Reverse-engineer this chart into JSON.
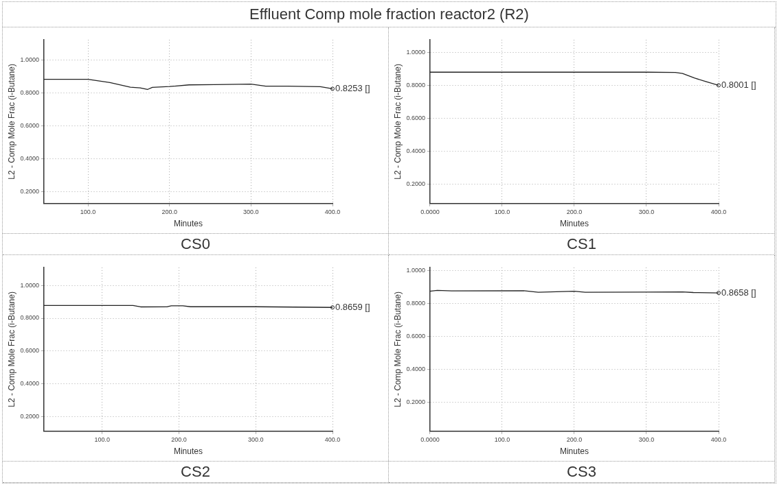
{
  "chart_data": [
    {
      "type": "line",
      "title": "Effluent Comp mole fraction reactor2 (R2)",
      "subtitle": "CS0",
      "xlabel": "Minutes",
      "ylabel": "L2 - Comp Mole Frac (i-Butane)",
      "x": [
        46,
        100,
        127,
        152,
        164,
        173,
        179,
        200,
        224,
        255,
        300,
        318,
        345,
        385,
        400
      ],
      "series": [
        {
          "color": "#222222",
          "values": [
            0.883,
            0.883,
            0.863,
            0.835,
            0.831,
            0.821,
            0.834,
            0.839,
            0.849,
            0.851,
            0.854,
            0.841,
            0.841,
            0.838,
            0.8253
          ],
          "value_labels": [
            null,
            null,
            null,
            null,
            null,
            null,
            null,
            null,
            null,
            null,
            null,
            null,
            null,
            null,
            "0.8253 []"
          ]
        }
      ],
      "xlim": [
        46,
        400
      ],
      "ylim": [
        0.128,
        1.123
      ],
      "xticks": [
        {
          "value": 100,
          "label": "100.0"
        },
        {
          "value": 200,
          "label": "200.0"
        },
        {
          "value": 300,
          "label": "300.0"
        },
        {
          "value": 400,
          "label": "400.0"
        }
      ],
      "yticks": [
        {
          "value": 0.2,
          "label": "0.2000"
        },
        {
          "value": 0.4,
          "label": "0.4000"
        },
        {
          "value": 0.6,
          "label": "0.6000"
        },
        {
          "value": 0.8,
          "label": "0.8000"
        },
        {
          "value": 1,
          "label": "1.0000"
        }
      ],
      "grid": true
    },
    {
      "type": "line",
      "subtitle": "CS1",
      "xlabel": "Minutes",
      "ylabel": "L2 - Comp Mole Frac (i-Butane)",
      "x": [
        0,
        100,
        200,
        300,
        340,
        350,
        367,
        383,
        400
      ],
      "series": [
        {
          "color": "#222222",
          "values": [
            0.88,
            0.88,
            0.88,
            0.88,
            0.878,
            0.872,
            0.844,
            0.822,
            0.8001
          ],
          "value_labels": [
            null,
            null,
            null,
            null,
            null,
            null,
            null,
            null,
            "0.8001 []"
          ]
        }
      ],
      "xlim": [
        0,
        400
      ],
      "ylim": [
        0.081,
        1.077
      ],
      "xticks": [
        {
          "value": 0,
          "label": "0.0000"
        },
        {
          "value": 100,
          "label": "100.0"
        },
        {
          "value": 200,
          "label": "200.0"
        },
        {
          "value": 300,
          "label": "300.0"
        },
        {
          "value": 400,
          "label": "400.0"
        }
      ],
      "yticks": [
        {
          "value": 0.2,
          "label": "0.2000"
        },
        {
          "value": 0.4,
          "label": "0.4000"
        },
        {
          "value": 0.6,
          "label": "0.6000"
        },
        {
          "value": 0.8,
          "label": "0.8000"
        },
        {
          "value": 1,
          "label": "1.0000"
        }
      ],
      "grid": true
    },
    {
      "type": "line",
      "subtitle": "CS2",
      "xlabel": "Minutes",
      "ylabel": "L2 - Comp Mole Frac (i-Butane)",
      "x": [
        24,
        140,
        150,
        185,
        190,
        205,
        215,
        300,
        400
      ],
      "series": [
        {
          "color": "#222222",
          "values": [
            0.878,
            0.878,
            0.869,
            0.87,
            0.876,
            0.876,
            0.87,
            0.87,
            0.8659
          ],
          "value_labels": [
            null,
            null,
            null,
            null,
            null,
            null,
            null,
            null,
            "0.8659 []"
          ]
        }
      ],
      "xlim": [
        24,
        400
      ],
      "ylim": [
        0.112,
        1.109
      ],
      "xticks": [
        {
          "value": 100,
          "label": "100.0"
        },
        {
          "value": 200,
          "label": "200.0"
        },
        {
          "value": 300,
          "label": "300.0"
        },
        {
          "value": 400,
          "label": "400.0"
        }
      ],
      "yticks": [
        {
          "value": 0.2,
          "label": "0.2000"
        },
        {
          "value": 0.4,
          "label": "0.4000"
        },
        {
          "value": 0.6,
          "label": "0.6000"
        },
        {
          "value": 0.8,
          "label": "0.8000"
        },
        {
          "value": 1,
          "label": "1.0000"
        }
      ],
      "grid": true
    },
    {
      "type": "line",
      "subtitle": "CS3",
      "xlabel": "Minutes",
      "ylabel": "L2 - Comp Mole Frac (i-Butane)",
      "x": [
        0,
        10,
        30,
        130,
        150,
        200,
        215,
        300,
        350,
        365,
        400
      ],
      "series": [
        {
          "color": "#222222",
          "values": [
            0.876,
            0.881,
            0.878,
            0.879,
            0.87,
            0.876,
            0.87,
            0.871,
            0.872,
            0.868,
            0.8658
          ],
          "value_labels": [
            null,
            null,
            null,
            null,
            null,
            null,
            null,
            null,
            null,
            null,
            "0.8658 []"
          ]
        }
      ],
      "xlim": [
        0,
        400
      ],
      "ylim": [
        0.026,
        1.02
      ],
      "xticks": [
        {
          "value": 0,
          "label": "0.0000"
        },
        {
          "value": 100,
          "label": "100.0"
        },
        {
          "value": 200,
          "label": "200.0"
        },
        {
          "value": 300,
          "label": "300.0"
        },
        {
          "value": 400,
          "label": "400.0"
        }
      ],
      "yticks": [
        {
          "value": 0.2,
          "label": "0.2000"
        },
        {
          "value": 0.4,
          "label": "0.4000"
        },
        {
          "value": 0.6,
          "label": "0.6000"
        },
        {
          "value": 0.8,
          "label": "0.8000"
        },
        {
          "value": 1,
          "label": "1.0000"
        }
      ],
      "grid": true
    }
  ]
}
